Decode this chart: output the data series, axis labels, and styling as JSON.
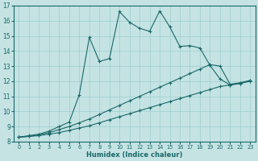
{
  "xlabel": "Humidex (Indice chaleur)",
  "bg_color": "#c5e3e3",
  "grid_color": "#9ecece",
  "line_color": "#1a6868",
  "xlim_min": -0.5,
  "xlim_max": 23.5,
  "ylim_min": 8,
  "ylim_max": 17,
  "xticks": [
    0,
    1,
    2,
    3,
    4,
    5,
    6,
    7,
    8,
    9,
    10,
    11,
    12,
    13,
    14,
    15,
    16,
    17,
    18,
    19,
    20,
    21,
    22,
    23
  ],
  "yticks": [
    8,
    9,
    10,
    11,
    12,
    13,
    14,
    15,
    16,
    17
  ],
  "series": [
    {
      "x": [
        0,
        1,
        2,
        3,
        4,
        5,
        6,
        7,
        8,
        9,
        10,
        11,
        12,
        13,
        14,
        15,
        16,
        17,
        18,
        19,
        20,
        21,
        22,
        23
      ],
      "y": [
        8.3,
        8.35,
        8.4,
        8.5,
        8.6,
        8.75,
        8.9,
        9.05,
        9.25,
        9.45,
        9.65,
        9.85,
        10.05,
        10.25,
        10.45,
        10.65,
        10.85,
        11.05,
        11.25,
        11.45,
        11.65,
        11.75,
        11.85,
        12.0
      ]
    },
    {
      "x": [
        0,
        1,
        2,
        3,
        4,
        5,
        6,
        7,
        8,
        9,
        10,
        11,
        12,
        13,
        14,
        15,
        16,
        17,
        18,
        19,
        20,
        21,
        22,
        23
      ],
      "y": [
        8.3,
        8.35,
        8.45,
        8.6,
        8.8,
        9.0,
        9.25,
        9.5,
        9.8,
        10.1,
        10.4,
        10.7,
        11.0,
        11.3,
        11.6,
        11.9,
        12.2,
        12.5,
        12.8,
        13.1,
        13.0,
        11.8,
        11.9,
        12.05
      ]
    },
    {
      "x": [
        0,
        1,
        2,
        3,
        4,
        5,
        6,
        7,
        8,
        9,
        10,
        11,
        12,
        13,
        14,
        15,
        16,
        17,
        18,
        19,
        20,
        21,
        22,
        23
      ],
      "y": [
        8.3,
        8.4,
        8.5,
        8.7,
        9.0,
        9.3,
        11.1,
        14.9,
        13.3,
        13.5,
        16.6,
        15.9,
        15.5,
        15.3,
        16.65,
        15.6,
        14.3,
        14.35,
        14.2,
        13.05,
        12.15,
        11.75,
        11.85,
        12.05
      ]
    }
  ]
}
